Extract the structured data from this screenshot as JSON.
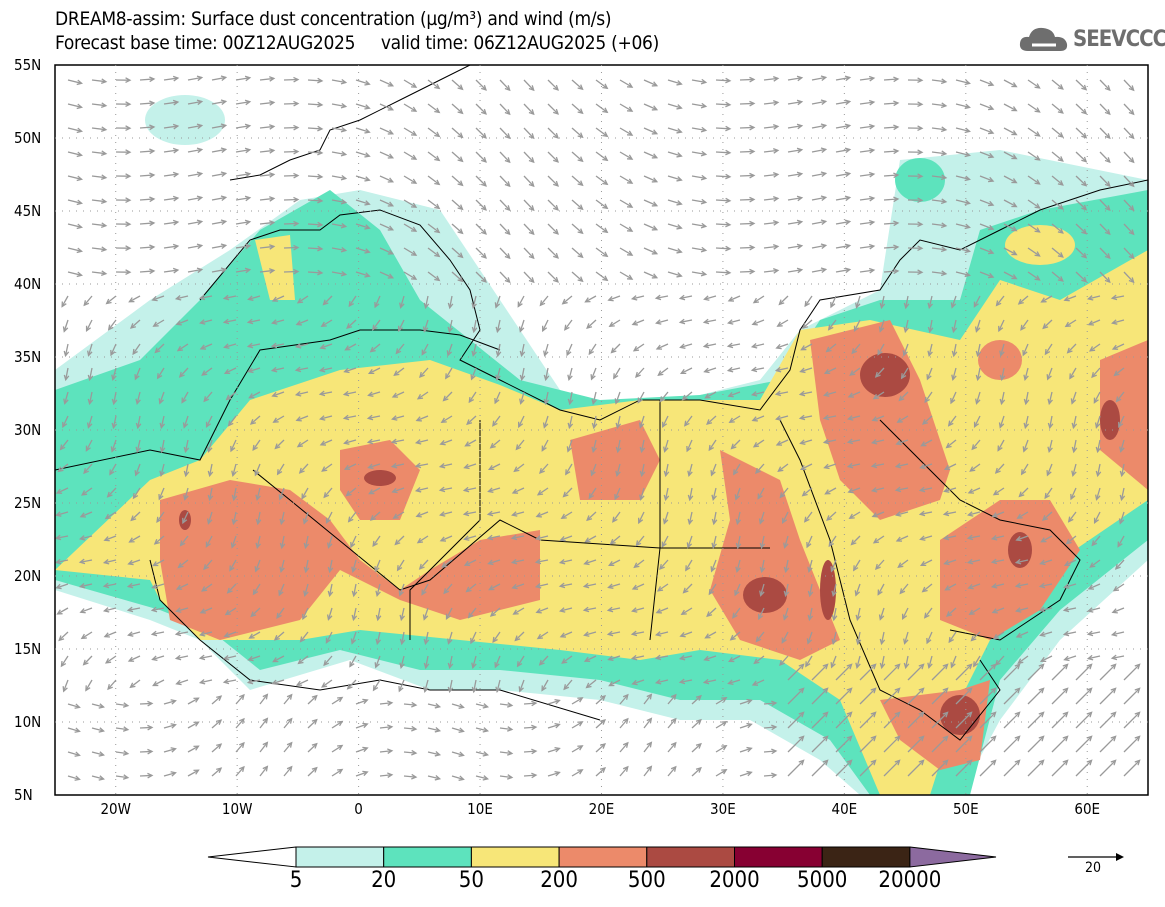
{
  "header": {
    "title": "DREAM8-assim: Surface dust concentration (µg/m³) and wind (m/s)",
    "subtitle": "Forecast base time: 00Z12AUG2025     valid time: 06Z12AUG2025 (+06)",
    "logo_text": "SEEVCCC"
  },
  "axes": {
    "lat_labels": [
      "55N",
      "50N",
      "45N",
      "40N",
      "35N",
      "30N",
      "25N",
      "20N",
      "15N",
      "10N",
      "5N"
    ],
    "lon_labels": [
      "20W",
      "10W",
      "0",
      "10E",
      "20E",
      "30E",
      "40E",
      "50E",
      "60E"
    ]
  },
  "colorbar": {
    "levels": [
      "5",
      "20",
      "50",
      "200",
      "500",
      "2000",
      "5000",
      "20000"
    ],
    "colors": [
      "#c4f1ea",
      "#5de3bd",
      "#f7e678",
      "#ec8a6a",
      "#ab4a42",
      "#870032",
      "#3b2415",
      "#8c6a9f"
    ]
  },
  "wind_reference": {
    "value": "20",
    "unit": "m/s"
  }
}
